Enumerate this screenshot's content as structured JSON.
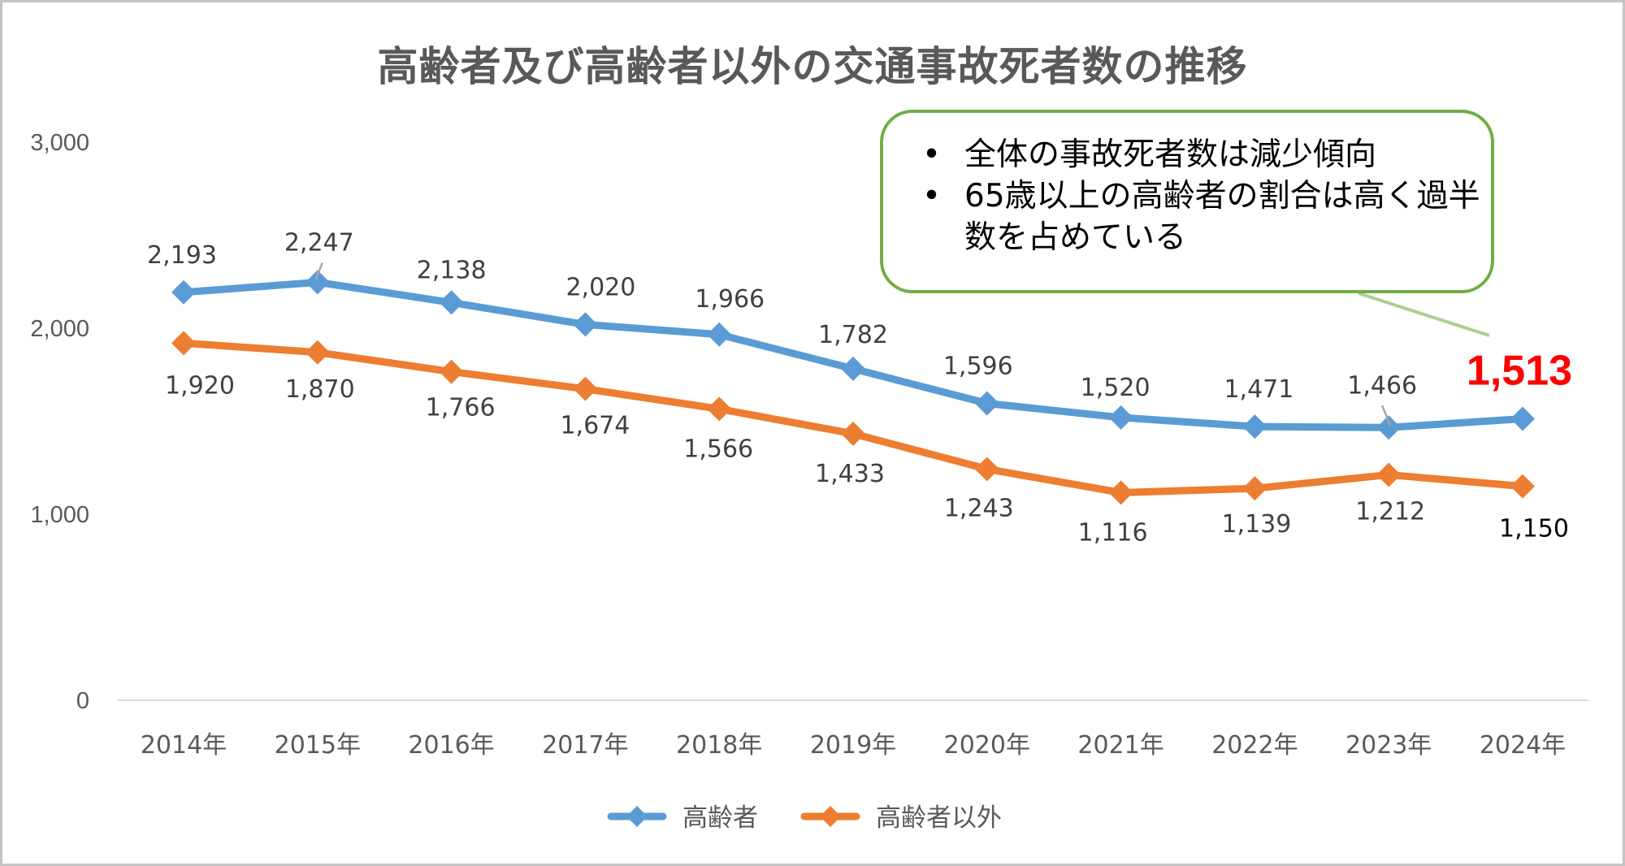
{
  "chart_data": {
    "type": "line",
    "title": "高齢者及び高齢者以外の交通事故死者数の推移",
    "categories": [
      "2014年",
      "2015年",
      "2016年",
      "2017年",
      "2018年",
      "2019年",
      "2020年",
      "2021年",
      "2022年",
      "2023年",
      "2024年"
    ],
    "series": [
      {
        "name": "高齢者",
        "color": "#5b9bd5",
        "marker": "diamond",
        "values": [
          2193,
          2247,
          2138,
          2020,
          1966,
          1782,
          1596,
          1520,
          1471,
          1466,
          1513
        ],
        "labels": [
          "2,193",
          "2,247",
          "2,138",
          "2,020",
          "1,966",
          "1,782",
          "1,596",
          "1,520",
          "1,471",
          "1,466",
          "1,513"
        ]
      },
      {
        "name": "高齢者以外",
        "color": "#ed7d31",
        "marker": "diamond",
        "values": [
          1920,
          1870,
          1766,
          1674,
          1566,
          1433,
          1243,
          1116,
          1139,
          1212,
          1150
        ],
        "labels": [
          "1,920",
          "1,870",
          "1,766",
          "1,674",
          "1,566",
          "1,433",
          "1,243",
          "1,116",
          "1,139",
          "1,212",
          "1,150"
        ]
      }
    ],
    "highlight": {
      "series": 0,
      "index": 10,
      "color": "#ff0000"
    },
    "ylim": [
      0,
      3000
    ],
    "yticks": [
      0,
      1000,
      2000,
      3000
    ],
    "ytick_labels": [
      "0",
      "1,000",
      "2,000",
      "3,000"
    ],
    "xlabel": "",
    "ylabel": "",
    "grid": false,
    "legend_position": "bottom",
    "annotation": {
      "points": [
        "全体の事故死者数は減少傾向",
        "65歳以上の高齢者の割合は高く過半数を占めている"
      ],
      "bullet": "•",
      "border_color": "#70ad47"
    }
  }
}
